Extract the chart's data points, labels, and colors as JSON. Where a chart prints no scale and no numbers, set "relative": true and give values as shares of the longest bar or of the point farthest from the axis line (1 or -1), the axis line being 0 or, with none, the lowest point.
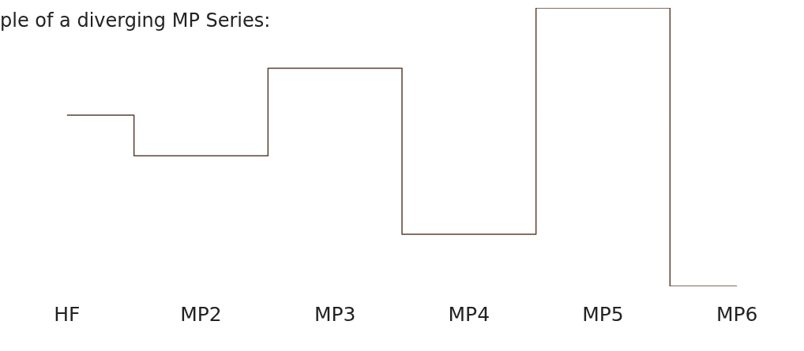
{
  "chart_data": {
    "type": "step",
    "title": "ple of a diverging MP Series:",
    "relative": true,
    "categories": [
      "HF",
      "MP2",
      "MP3",
      "MP4",
      "MP5",
      "MP6"
    ],
    "series": [
      {
        "color": "#5a4030",
        "values": [
          0.615,
          0.469,
          0.783,
          0.187,
          1,
          0
        ]
      }
    ],
    "legend": false,
    "grid": false
  }
}
